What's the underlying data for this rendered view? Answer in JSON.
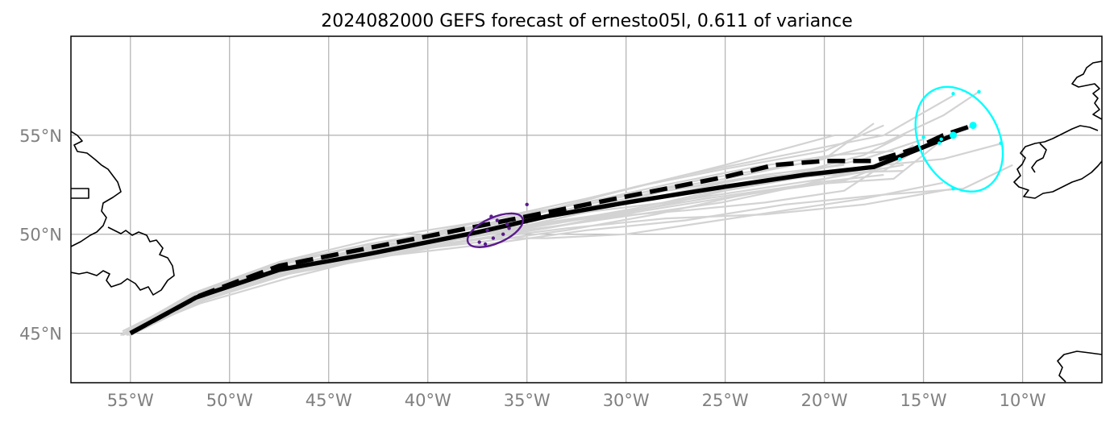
{
  "title": "2024082000 GEFS forecast of ernesto05l, 0.611 of variance",
  "colors": {
    "ensemble": "#d3d3d3",
    "track_solid": "#000000",
    "track_dashed": "#000000",
    "ellipse_mid": "#5b1a8e",
    "ellipse_end": "#00ffff",
    "grid": "#b0b0b0",
    "tick_text": "#808080",
    "coast": "#000000"
  },
  "axes": {
    "lon_range": [
      -58,
      -6
    ],
    "lat_range": [
      42.5,
      60
    ],
    "lon_ticks": [
      {
        "value": -55,
        "label": "55°W"
      },
      {
        "value": -50,
        "label": "50°W"
      },
      {
        "value": -45,
        "label": "45°W"
      },
      {
        "value": -40,
        "label": "40°W"
      },
      {
        "value": -35,
        "label": "35°W"
      },
      {
        "value": -30,
        "label": "30°W"
      },
      {
        "value": -25,
        "label": "25°W"
      },
      {
        "value": -20,
        "label": "20°W"
      },
      {
        "value": -15,
        "label": "15°W"
      },
      {
        "value": -10,
        "label": "10°W"
      }
    ],
    "lat_ticks": [
      {
        "value": 45,
        "label": "45°N"
      },
      {
        "value": 50,
        "label": "50°N"
      },
      {
        "value": 55,
        "label": "55°N"
      }
    ],
    "grid": true
  },
  "chart_data": {
    "type": "map-track",
    "projection": "PlateCarree",
    "tracks": {
      "solid": [
        [
          -55.0,
          45.0
        ],
        [
          -51.7,
          46.8
        ],
        [
          -47.5,
          48.2
        ],
        [
          -43,
          49.0
        ],
        [
          -37.5,
          50.1
        ],
        [
          -34,
          50.9
        ],
        [
          -30,
          51.6
        ],
        [
          -25,
          52.4
        ],
        [
          -21,
          53.0
        ],
        [
          -17.5,
          53.4
        ],
        [
          -16,
          54.0
        ],
        [
          -14.5,
          54.6
        ],
        [
          -13.5,
          55.0
        ]
      ],
      "dashed": [
        [
          -55.0,
          45.0
        ],
        [
          -51.5,
          46.9
        ],
        [
          -47.5,
          48.4
        ],
        [
          -43,
          49.3
        ],
        [
          -37.5,
          50.4
        ],
        [
          -34.5,
          51.0
        ],
        [
          -30,
          51.9
        ],
        [
          -25,
          52.9
        ],
        [
          -22.5,
          53.5
        ],
        [
          -20,
          53.7
        ],
        [
          -17.5,
          53.7
        ],
        [
          -15.5,
          54.3
        ],
        [
          -14,
          55.0
        ],
        [
          -12.5,
          55.5
        ]
      ]
    },
    "ensemble": [
      [
        [
          -55.4,
          44.9
        ],
        [
          -51.5,
          46.5
        ],
        [
          -47,
          47.8
        ],
        [
          -43,
          48.8
        ],
        [
          -37,
          49.5
        ],
        [
          -32,
          50.2
        ],
        [
          -27,
          50.7
        ],
        [
          -22,
          51.5
        ],
        [
          -17,
          52.0
        ],
        [
          -13,
          52.3
        ],
        [
          -10.5,
          53.5
        ]
      ],
      [
        [
          -55.2,
          45.1
        ],
        [
          -51.8,
          46.9
        ],
        [
          -47.5,
          48.3
        ],
        [
          -42,
          49.5
        ],
        [
          -37,
          50.2
        ],
        [
          -32,
          51.5
        ],
        [
          -26,
          52.8
        ],
        [
          -21,
          53.6
        ],
        [
          -17,
          54.6
        ],
        [
          -14,
          56.0
        ],
        [
          -12.2,
          57.2
        ]
      ],
      [
        [
          -55.3,
          45.0
        ],
        [
          -51.6,
          46.8
        ],
        [
          -47.2,
          48.1
        ],
        [
          -42.5,
          49.3
        ],
        [
          -37,
          50.0
        ],
        [
          -32.5,
          51.0
        ],
        [
          -28,
          52.0
        ],
        [
          -24,
          52.8
        ],
        [
          -19,
          53.3
        ],
        [
          -14,
          53.8
        ],
        [
          -11,
          54.6
        ]
      ],
      [
        [
          -55.1,
          45.0
        ],
        [
          -51.2,
          46.7
        ],
        [
          -47,
          48.0
        ],
        [
          -42,
          49.0
        ],
        [
          -37,
          49.8
        ],
        [
          -33,
          50.3
        ],
        [
          -28,
          50.8
        ],
        [
          -23,
          51.0
        ],
        [
          -18,
          51.5
        ],
        [
          -13.5,
          52.3
        ]
      ],
      [
        [
          -55.5,
          44.9
        ],
        [
          -51.5,
          46.6
        ],
        [
          -47.5,
          47.9
        ],
        [
          -43,
          48.9
        ],
        [
          -38,
          49.7
        ],
        [
          -34,
          50.3
        ],
        [
          -29,
          51.2
        ],
        [
          -24,
          52.0
        ],
        [
          -19,
          52.7
        ],
        [
          -16.2,
          53.8
        ]
      ],
      [
        [
          -55.0,
          45.1
        ],
        [
          -51.6,
          47.0
        ],
        [
          -47.5,
          48.6
        ],
        [
          -42.5,
          49.8
        ],
        [
          -37.5,
          50.6
        ],
        [
          -32,
          51.8
        ],
        [
          -27,
          53.0
        ],
        [
          -22,
          54.0
        ],
        [
          -17,
          55.0
        ],
        [
          -13.5,
          57.0
        ]
      ],
      [
        [
          -55.2,
          45.0
        ],
        [
          -51.5,
          46.8
        ],
        [
          -47.2,
          48.2
        ],
        [
          -43,
          49.2
        ],
        [
          -37.6,
          49.7
        ],
        [
          -33,
          50.5
        ],
        [
          -28,
          51.5
        ],
        [
          -23,
          52.7
        ],
        [
          -18,
          53.8
        ],
        [
          -15,
          54.8
        ]
      ],
      [
        [
          -55.3,
          45.0
        ],
        [
          -51.7,
          46.9
        ],
        [
          -47.4,
          48.3
        ],
        [
          -42.5,
          49.4
        ],
        [
          -36,
          50.6
        ],
        [
          -31,
          52.0
        ],
        [
          -25,
          53.5
        ],
        [
          -19.5,
          55.0
        ]
      ],
      [
        [
          -55.1,
          45.1
        ],
        [
          -51.5,
          46.9
        ],
        [
          -47.0,
          48.4
        ],
        [
          -42,
          49.6
        ],
        [
          -36.5,
          50.8
        ],
        [
          -31,
          51.8
        ],
        [
          -25,
          52.8
        ],
        [
          -20,
          53.8
        ],
        [
          -17.5,
          55.6
        ]
      ],
      [
        [
          -55.4,
          45.0
        ],
        [
          -51.7,
          46.6
        ],
        [
          -47.3,
          48.0
        ],
        [
          -42.8,
          49.0
        ],
        [
          -37.5,
          49.9
        ],
        [
          -32,
          50.8
        ],
        [
          -26,
          51.8
        ],
        [
          -21,
          52.5
        ],
        [
          -16.5,
          52.8
        ],
        [
          -14,
          54.8
        ],
        [
          -12.5,
          55.5
        ]
      ],
      [
        [
          -55.0,
          44.9
        ],
        [
          -51.3,
          46.7
        ],
        [
          -47,
          48.1
        ],
        [
          -43,
          49.1
        ],
        [
          -38,
          50.0
        ],
        [
          -34,
          50.6
        ],
        [
          -29,
          51.3
        ],
        [
          -25,
          52.2
        ],
        [
          -21,
          52.9
        ],
        [
          -17,
          53.2
        ],
        [
          -14.2,
          55.0
        ]
      ],
      [
        [
          -55.2,
          45.1
        ],
        [
          -51.9,
          47.0
        ],
        [
          -47.8,
          48.5
        ],
        [
          -43,
          49.5
        ],
        [
          -38,
          50.3
        ],
        [
          -33,
          51.0
        ],
        [
          -28,
          51.6
        ],
        [
          -24,
          52.2
        ],
        [
          -20,
          52.8
        ],
        [
          -16,
          53.5
        ]
      ],
      [
        [
          -55.3,
          45.0
        ],
        [
          -51.4,
          46.8
        ],
        [
          -47.2,
          48.2
        ],
        [
          -42.4,
          49.3
        ],
        [
          -37.2,
          50.1
        ],
        [
          -32,
          50.8
        ],
        [
          -27,
          51.2
        ],
        [
          -23,
          51.6
        ],
        [
          -19,
          52.2
        ],
        [
          -15.5,
          54.5
        ]
      ],
      [
        [
          -55.1,
          45.0
        ],
        [
          -51.6,
          46.9
        ],
        [
          -47.4,
          48.3
        ],
        [
          -43.2,
          49.2
        ],
        [
          -38,
          49.8
        ],
        [
          -33,
          50.9
        ],
        [
          -28,
          52.2
        ],
        [
          -23,
          53.0
        ],
        [
          -19,
          53.5
        ]
      ],
      [
        [
          -55.2,
          44.9
        ],
        [
          -51.5,
          46.7
        ],
        [
          -47,
          48.0
        ],
        [
          -42,
          48.9
        ],
        [
          -37.2,
          49.8
        ],
        [
          -34,
          49.8
        ],
        [
          -30,
          50.0
        ],
        [
          -26,
          50.6
        ],
        [
          -22,
          51.2
        ],
        [
          -18,
          51.8
        ],
        [
          -14,
          52.6
        ]
      ],
      [
        [
          -55.4,
          45.1
        ],
        [
          -51.8,
          46.9
        ],
        [
          -47.6,
          48.4
        ],
        [
          -43.4,
          49.4
        ],
        [
          -38.2,
          50.2
        ],
        [
          -34,
          51.2
        ],
        [
          -29.5,
          52.4
        ],
        [
          -25,
          53.3
        ],
        [
          -20,
          54.2
        ],
        [
          -17,
          55.5
        ]
      ],
      [
        [
          -55.0,
          45.0
        ],
        [
          -51.6,
          46.8
        ],
        [
          -47.3,
          48.2
        ],
        [
          -42.8,
          49.1
        ],
        [
          -37.8,
          49.9
        ],
        [
          -33.5,
          50.6
        ],
        [
          -29,
          51.4
        ],
        [
          -25,
          52.3
        ],
        [
          -21,
          53.2
        ],
        [
          -18,
          54.0
        ],
        [
          -16,
          55.0
        ]
      ],
      [
        [
          -55.3,
          45.0
        ],
        [
          -51.5,
          46.6
        ],
        [
          -47.1,
          48.0
        ],
        [
          -42.6,
          49.0
        ],
        [
          -37.4,
          49.6
        ],
        [
          -33,
          50.2
        ],
        [
          -28.5,
          51.0
        ],
        [
          -24.5,
          51.9
        ],
        [
          -20.5,
          52.6
        ],
        [
          -17,
          53.0
        ]
      ],
      [
        [
          -55.2,
          45.1
        ],
        [
          -51.7,
          47.0
        ],
        [
          -47.5,
          48.5
        ],
        [
          -43,
          49.5
        ],
        [
          -37.7,
          50.4
        ],
        [
          -33,
          51.4
        ],
        [
          -28,
          52.5
        ],
        [
          -23.5,
          53.4
        ],
        [
          -19.5,
          54.0
        ],
        [
          -16.5,
          54.2
        ]
      ],
      [
        [
          -55.1,
          44.9
        ],
        [
          -51.4,
          46.7
        ],
        [
          -47.2,
          48.1
        ],
        [
          -42.9,
          49.1
        ],
        [
          -37.6,
          49.9
        ],
        [
          -33.6,
          50.4
        ],
        [
          -29.4,
          51.0
        ],
        [
          -25.2,
          51.6
        ],
        [
          -21.4,
          52.4
        ],
        [
          -18.5,
          53.2
        ]
      ],
      [
        [
          -55.3,
          45.0
        ],
        [
          -51.6,
          46.8
        ],
        [
          -47.4,
          48.3
        ],
        [
          -43,
          49.3
        ],
        [
          -37.9,
          50.1
        ],
        [
          -33.2,
          51.1
        ],
        [
          -28.6,
          52.1
        ],
        [
          -24,
          52.8
        ],
        [
          -19.8,
          53.1
        ],
        [
          -16,
          53.2
        ]
      ]
    ],
    "ellipse_mid": {
      "center": [
        -36.6,
        50.2
      ],
      "semi_axes": [
        1.5,
        0.65
      ],
      "angle_deg": 24
    },
    "ellipse_end": {
      "center": [
        -13.2,
        54.8
      ],
      "semi_axes": [
        2.0,
        2.8
      ],
      "angle_deg": 28
    },
    "points_mid": [
      [
        -37.4,
        49.6
      ],
      [
        -37.1,
        49.5
      ],
      [
        -36.7,
        49.8
      ],
      [
        -36.2,
        50.0
      ],
      [
        -35.9,
        50.3
      ],
      [
        -36.5,
        50.7
      ],
      [
        -36.0,
        50.5
      ],
      [
        -37.0,
        50.2
      ],
      [
        -36.8,
        50.9
      ],
      [
        -35.0,
        51.5
      ]
    ],
    "points_end": [
      [
        -13.5,
        57.1
      ],
      [
        -12.2,
        57.2
      ],
      [
        -15.0,
        54.9
      ],
      [
        -14.2,
        54.6
      ],
      [
        -14.1,
        54.8
      ],
      [
        -11.1,
        54.6
      ],
      [
        -16.2,
        53.8
      ],
      [
        -13.5,
        52.3
      ]
    ],
    "center_end_large": [
      [
        -13.5,
        55.0
      ],
      [
        -12.5,
        55.5
      ]
    ]
  }
}
